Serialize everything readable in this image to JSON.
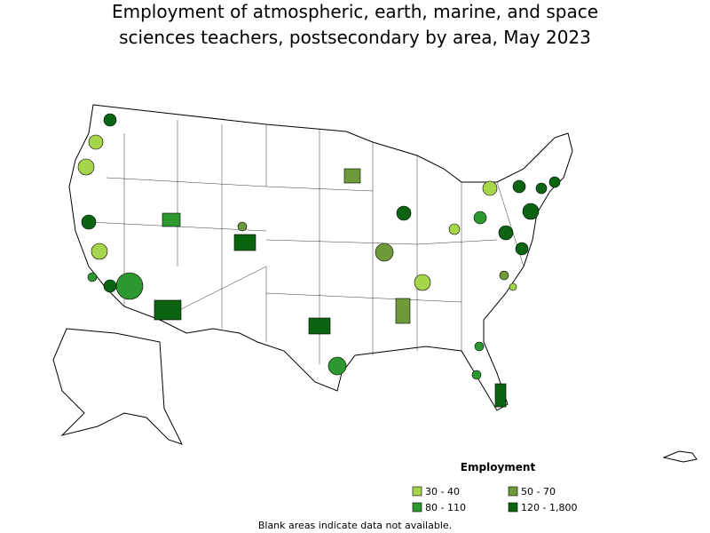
{
  "header": {
    "title_lines": [
      "Employment of atmospheric, earth, marine, and space",
      "sciences teachers, postsecondary by area, May 2023"
    ]
  },
  "legend": {
    "title": "Employment",
    "items": [
      {
        "label": "30 - 40",
        "color": "#a6d44a"
      },
      {
        "label": "50 - 70",
        "color": "#6f9a3a"
      },
      {
        "label": "80 - 110",
        "color": "#2e9830"
      },
      {
        "label": "120 - 1,800",
        "color": "#0a6410"
      }
    ]
  },
  "footnote": "Blank areas indicate data not available."
}
